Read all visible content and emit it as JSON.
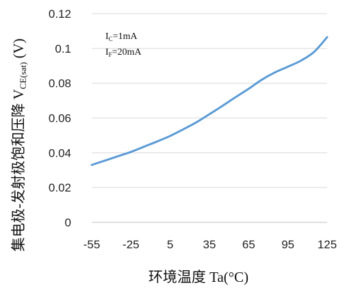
{
  "chart_data": {
    "type": "line",
    "title": "",
    "xlabel": "环境温度 Ta(°C)",
    "ylabel": "集电极-发射极饱和压降 V",
    "ylabel_sub": "CE(sat)",
    "ylabel_unit": " (V)",
    "xlim": [
      -55,
      125
    ],
    "ylim": [
      0,
      0.12
    ],
    "xticks": [
      "-55",
      "-25",
      "5",
      "35",
      "65",
      "95",
      "125"
    ],
    "yticks": [
      "0",
      "0.02",
      "0.04",
      "0.06",
      "0.08",
      "0.1",
      "0.12"
    ],
    "xtick_values": [
      -55,
      -25,
      5,
      35,
      65,
      95,
      125
    ],
    "ytick_values": [
      0,
      0.02,
      0.04,
      0.06,
      0.08,
      0.1,
      0.12
    ],
    "grid": "horizontal",
    "line_color": "#5b9bd5",
    "annotations": [
      {
        "main": "I",
        "sub": "C",
        "rest": "=1mA"
      },
      {
        "main": "I",
        "sub": "F",
        "rest": "=20mA"
      }
    ],
    "series": [
      {
        "x": [
          -55,
          -45,
          -35,
          -25,
          -15,
          -5,
          5,
          15,
          25,
          35,
          45,
          55,
          65,
          75,
          85,
          95,
          105,
          115,
          125
        ],
        "y": [
          0.033,
          0.0355,
          0.038,
          0.0405,
          0.0435,
          0.0465,
          0.0497,
          0.0535,
          0.0575,
          0.0622,
          0.067,
          0.072,
          0.0768,
          0.082,
          0.0862,
          0.0895,
          0.093,
          0.098,
          0.1065
        ]
      }
    ]
  }
}
